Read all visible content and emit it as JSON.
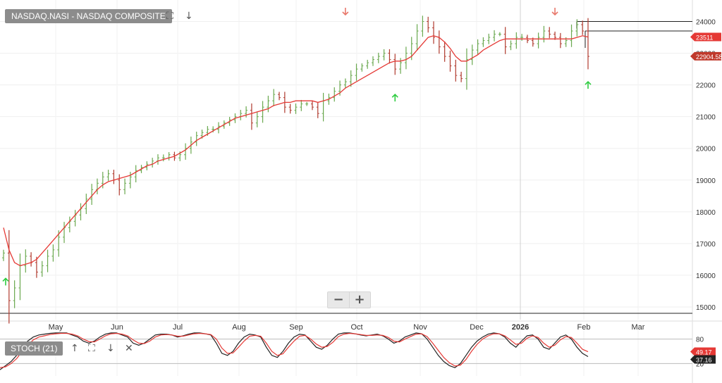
{
  "header": {
    "title": "NASDAQ.NASI - NASDAQ COMPOSITE",
    "stoch_label": "STOCH (21)"
  },
  "icons": {
    "expand": "expand-icon",
    "down": "arrow-down-icon",
    "up": "arrow-up-icon",
    "close": "close-icon"
  },
  "zoom": {
    "minus": "−",
    "plus": "+"
  },
  "colors": {
    "up_bar": "#6aa84f",
    "down_bar": "#b03a2e",
    "ma": "#e53935",
    "stoch_k": "#222222",
    "stoch_d": "#e53935",
    "buy_arrow": "#2ecc40",
    "sell_arrow": "#e8786b",
    "last_tag": "#c0392b",
    "ma_tag": "#e53935"
  },
  "chart_data": [
    {
      "type": "ohlc",
      "title": "NASDAQ.NASI - NASDAQ COMPOSITE",
      "y_ticks": [
        15000,
        16000,
        17000,
        18000,
        19000,
        20000,
        21000,
        22000,
        23000,
        24000
      ],
      "ylim": [
        14600,
        24500
      ],
      "x_months": [
        "May",
        "Jun",
        "Jul",
        "Aug",
        "Sep",
        "Oct",
        "Nov",
        "Dec",
        "2026",
        "Feb",
        "Mar"
      ],
      "last_price": "22904.58",
      "ma_value": "23511",
      "levels": [
        24000,
        23700,
        14800
      ],
      "close_series": [
        16700,
        15200,
        15600,
        16300,
        16600,
        16400,
        16100,
        16300,
        16600,
        16800,
        17200,
        17500,
        17700,
        17900,
        18100,
        18400,
        18700,
        18900,
        19100,
        19200,
        19000,
        18700,
        18900,
        19100,
        19300,
        19400,
        19500,
        19600,
        19700,
        19700,
        19800,
        19700,
        19800,
        20000,
        20200,
        20400,
        20500,
        20600,
        20600,
        20700,
        20800,
        20900,
        21000,
        21100,
        21200,
        20800,
        21000,
        21300,
        21500,
        21700,
        21600,
        21300,
        21200,
        21300,
        21400,
        21400,
        21300,
        21100,
        21500,
        21600,
        21800,
        22000,
        22100,
        22300,
        22500,
        22600,
        22700,
        22800,
        22900,
        23000,
        22800,
        22500,
        22700,
        23000,
        23300,
        23700,
        24000,
        23800,
        23500,
        23200,
        22900,
        22600,
        22300,
        22200,
        22800,
        23100,
        23300,
        23400,
        23500,
        23600,
        23600,
        23200,
        23300,
        23500,
        23500,
        23400,
        23300,
        23500,
        23700,
        23600,
        23500,
        23300,
        23400,
        23700,
        23900,
        23700,
        22900
      ],
      "ma_series": [
        17500,
        16800,
        16400,
        16300,
        16350,
        16400,
        16500,
        16700,
        16900,
        17100,
        17300,
        17500,
        17700,
        17900,
        18100,
        18300,
        18500,
        18700,
        18850,
        18950,
        19000,
        19050,
        19100,
        19150,
        19250,
        19350,
        19450,
        19500,
        19600,
        19650,
        19700,
        19750,
        19850,
        19950,
        20100,
        20250,
        20350,
        20450,
        20550,
        20650,
        20750,
        20850,
        20950,
        21000,
        21050,
        21100,
        21150,
        21200,
        21250,
        21350,
        21400,
        21450,
        21450,
        21500,
        21500,
        21500,
        21500,
        21450,
        21500,
        21550,
        21650,
        21750,
        21900,
        22000,
        22100,
        22200,
        22300,
        22400,
        22500,
        22600,
        22700,
        22750,
        22750,
        22800,
        22900,
        23100,
        23300,
        23500,
        23550,
        23500,
        23350,
        23150,
        22900,
        22750,
        22750,
        22850,
        22950,
        23100,
        23200,
        23300,
        23400,
        23450,
        23450,
        23450,
        23450,
        23450,
        23450,
        23450,
        23450,
        23450,
        23450,
        23450,
        23450,
        23450,
        23500,
        23550,
        23511
      ],
      "buy_signals": [
        0,
        71,
        106
      ],
      "sell_signals": [
        62,
        100
      ]
    },
    {
      "type": "line",
      "title": "STOCH (21)",
      "y_ticks": [
        20,
        80
      ],
      "ylim": [
        0,
        100
      ],
      "k_value": "37.16",
      "d_value": "49.17",
      "series": [
        {
          "name": "%K",
          "values": [
            5,
            15,
            25,
            40,
            60,
            75,
            85,
            90,
            92,
            94,
            95,
            95,
            95,
            90,
            85,
            75,
            70,
            75,
            85,
            92,
            95,
            95,
            90,
            85,
            70,
            65,
            70,
            80,
            90,
            92,
            92,
            90,
            85,
            88,
            92,
            95,
            95,
            93,
            90,
            70,
            45,
            40,
            50,
            70,
            85,
            92,
            90,
            85,
            60,
            40,
            35,
            50,
            70,
            85,
            92,
            90,
            75,
            60,
            55,
            65,
            80,
            92,
            95,
            95,
            93,
            90,
            88,
            90,
            92,
            88,
            80,
            70,
            75,
            85,
            90,
            95,
            93,
            80,
            60,
            40,
            25,
            15,
            10,
            20,
            40,
            60,
            75,
            85,
            92,
            95,
            93,
            85,
            70,
            60,
            75,
            88,
            90,
            80,
            60,
            55,
            70,
            85,
            90,
            80,
            60,
            45,
            37
          ]
        },
        {
          "name": "%D",
          "values": [
            10,
            12,
            20,
            32,
            50,
            65,
            78,
            85,
            88,
            91,
            93,
            94,
            94,
            92,
            88,
            80,
            74,
            73,
            80,
            88,
            93,
            94,
            92,
            88,
            78,
            70,
            69,
            75,
            85,
            90,
            91,
            90,
            87,
            87,
            90,
            93,
            94,
            93,
            91,
            80,
            58,
            45,
            46,
            60,
            75,
            87,
            89,
            87,
            70,
            50,
            40,
            44,
            60,
            75,
            87,
            89,
            80,
            68,
            60,
            62,
            72,
            86,
            92,
            94,
            93,
            91,
            89,
            89,
            90,
            89,
            84,
            75,
            73,
            80,
            86,
            92,
            93,
            86,
            70,
            52,
            35,
            22,
            14,
            16,
            30,
            50,
            67,
            80,
            88,
            93,
            93,
            88,
            78,
            67,
            70,
            82,
            88,
            84,
            70,
            60,
            65,
            78,
            86,
            84,
            70,
            55,
            49
          ]
        }
      ]
    }
  ]
}
